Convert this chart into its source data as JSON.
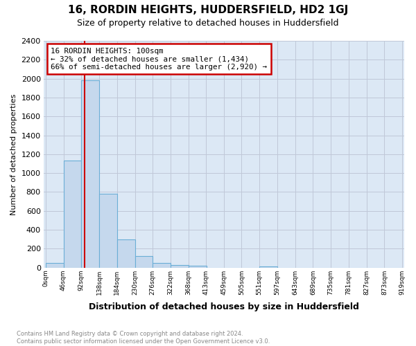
{
  "title": "16, RORDIN HEIGHTS, HUDDERSFIELD, HD2 1GJ",
  "subtitle": "Size of property relative to detached houses in Huddersfield",
  "xlabel": "Distribution of detached houses by size in Huddersfield",
  "ylabel": "Number of detached properties",
  "bin_edges": [
    0,
    46,
    92,
    138,
    184,
    230,
    276,
    322,
    368,
    413,
    459,
    505,
    551,
    597,
    643,
    689,
    735,
    781,
    827,
    873,
    919
  ],
  "bin_labels": [
    "0sqm",
    "46sqm",
    "92sqm",
    "138sqm",
    "184sqm",
    "230sqm",
    "276sqm",
    "322sqm",
    "368sqm",
    "413sqm",
    "459sqm",
    "505sqm",
    "551sqm",
    "597sqm",
    "643sqm",
    "689sqm",
    "735sqm",
    "781sqm",
    "827sqm",
    "873sqm",
    "919sqm"
  ],
  "bar_values": [
    50,
    1130,
    1980,
    780,
    300,
    120,
    50,
    30,
    20,
    0,
    0,
    0,
    15,
    0,
    0,
    0,
    0,
    0,
    0,
    0
  ],
  "bar_color": "#c5d8ed",
  "bar_edge_color": "#6aaed6",
  "ylim": [
    0,
    2400
  ],
  "yticks": [
    0,
    200,
    400,
    600,
    800,
    1000,
    1200,
    1400,
    1600,
    1800,
    2000,
    2200,
    2400
  ],
  "property_size": 100,
  "red_line_color": "#cc0000",
  "annotation_title": "16 RORDIN HEIGHTS: 100sqm",
  "annotation_line1": "← 32% of detached houses are smaller (1,434)",
  "annotation_line2": "66% of semi-detached houses are larger (2,920) →",
  "footer_line1": "Contains HM Land Registry data © Crown copyright and database right 2024.",
  "footer_line2": "Contains public sector information licensed under the Open Government Licence v3.0.",
  "grid_color": "#c0c8d8",
  "background_color": "#dce8f5"
}
